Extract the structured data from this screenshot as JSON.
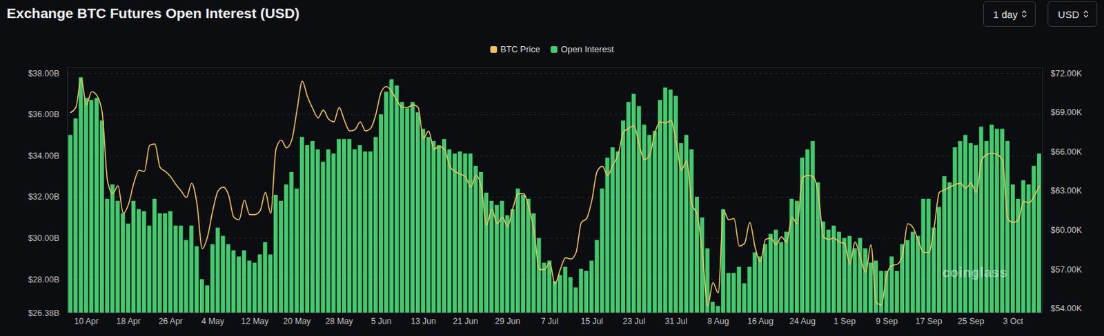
{
  "chart_data": {
    "type": "bar",
    "title": "Exchange BTC Futures Open Interest (USD)",
    "buttons": [
      "1 day",
      "USD"
    ],
    "watermark": "coinglass",
    "legend": "top",
    "grid": true,
    "categories": [
      null,
      null,
      null,
      "10 Apr",
      null,
      null,
      null,
      null,
      null,
      null,
      null,
      "18 Apr",
      null,
      null,
      null,
      null,
      null,
      null,
      null,
      "26 Apr",
      null,
      null,
      null,
      null,
      null,
      null,
      null,
      "4 May",
      null,
      null,
      null,
      null,
      null,
      null,
      null,
      "12 May",
      null,
      null,
      null,
      null,
      null,
      null,
      null,
      "20 May",
      null,
      null,
      null,
      null,
      null,
      null,
      null,
      "28 May",
      null,
      null,
      null,
      null,
      null,
      null,
      null,
      "5 Jun",
      null,
      null,
      null,
      null,
      null,
      null,
      null,
      "13 Jun",
      null,
      null,
      null,
      null,
      null,
      null,
      null,
      "21 Jun",
      null,
      null,
      null,
      null,
      null,
      null,
      null,
      "29 Jun",
      null,
      null,
      null,
      null,
      null,
      null,
      null,
      "7 Jul",
      null,
      null,
      null,
      null,
      null,
      null,
      null,
      "15 Jul",
      null,
      null,
      null,
      null,
      null,
      null,
      null,
      "23 Jul",
      null,
      null,
      null,
      null,
      null,
      null,
      null,
      "31 Jul",
      null,
      null,
      null,
      null,
      null,
      null,
      null,
      "8 Aug",
      null,
      null,
      null,
      null,
      null,
      null,
      null,
      "16 Aug",
      null,
      null,
      null,
      null,
      null,
      null,
      null,
      "24 Aug",
      null,
      null,
      null,
      null,
      null,
      null,
      null,
      "1 Sep",
      null,
      null,
      null,
      null,
      null,
      null,
      null,
      "9 Sep",
      null,
      null,
      null,
      null,
      null,
      null,
      null,
      "17 Sep",
      null,
      null,
      null,
      null,
      null,
      null,
      null,
      "25 Sep",
      null,
      null,
      null,
      null,
      null,
      null,
      null,
      "3 Oct",
      null,
      null,
      null,
      null,
      null
    ],
    "series": [
      {
        "name": "BTC Price",
        "type": "line",
        "axis": "y2",
        "color": "#f1c45a",
        "values": [
          69.0,
          69.4,
          71.6,
          69.6,
          70.6,
          70.3,
          69.0,
          63.8,
          62.8,
          63.4,
          61.3,
          62.0,
          63.6,
          64.6,
          64.5,
          66.5,
          66.6,
          64.8,
          64.5,
          64.1,
          63.5,
          63.0,
          62.5,
          63.6,
          62.0,
          58.6,
          59.5,
          61.5,
          63.0,
          63.3,
          62.7,
          61.0,
          60.8,
          62.3,
          61.2,
          61.2,
          61.5,
          62.9,
          61.3,
          66.2,
          66.9,
          66.3,
          66.9,
          69.2,
          71.4,
          70.2,
          69.3,
          68.6,
          69.2,
          68.5,
          68.3,
          69.4,
          68.4,
          67.6,
          67.7,
          68.3,
          67.6,
          67.8,
          68.9,
          70.6,
          71.0,
          70.6,
          69.9,
          69.4,
          69.4,
          69.6,
          69.4,
          67.0,
          67.6,
          66.2,
          66.4,
          66.2,
          64.9,
          64.5,
          64.3,
          64.1,
          63.3,
          64.2,
          63.3,
          60.4,
          61.6,
          60.5,
          61.0,
          60.3,
          61.7,
          62.8,
          62.8,
          61.8,
          60.0,
          57.0,
          57.0,
          57.5,
          55.9,
          57.0,
          57.9,
          57.8,
          58.3,
          60.6,
          60.9,
          62.3,
          64.5,
          64.9,
          64.2,
          65.0,
          65.8,
          67.5,
          67.8,
          68.0,
          66.5,
          65.4,
          65.8,
          67.5,
          68.3,
          68.2,
          68.4,
          66.8,
          64.6,
          65.3,
          62.0,
          61.2,
          58.2,
          54.2,
          56.0,
          55.2,
          61.5,
          60.8,
          60.9,
          58.8,
          59.0,
          60.6,
          58.7,
          57.6,
          59.3,
          59.4,
          58.9,
          59.5,
          59.1,
          61.0,
          60.5,
          64.0,
          64.2,
          64.1,
          62.8,
          59.5,
          59.3,
          59.4,
          59.1,
          59.0,
          57.4,
          59.1,
          57.9,
          56.8,
          58.9,
          54.5,
          54.3,
          56.6,
          57.3,
          57.4,
          58.1,
          60.5,
          60.2,
          59.2,
          58.3,
          58.3,
          60.2,
          62.9,
          63.1,
          63.3,
          63.5,
          63.6,
          63.2,
          63.6,
          62.9,
          65.3,
          65.8,
          65.9,
          65.8,
          65.3,
          60.9,
          60.6,
          60.8,
          62.2,
          62.1,
          62.6,
          63.4
        ]
      },
      {
        "name": "Open Interest",
        "type": "bar",
        "color": "#44c96f",
        "values": [
          35.0,
          35.8,
          37.8,
          36.8,
          36.7,
          36.8,
          35.7,
          31.9,
          32.6,
          31.8,
          31.2,
          30.7,
          31.8,
          31.4,
          31.3,
          30.6,
          31.9,
          31.2,
          31.2,
          31.3,
          30.6,
          30.6,
          29.9,
          30.6,
          29.6,
          28.0,
          27.7,
          29.7,
          30.5,
          30.1,
          29.7,
          29.4,
          29.1,
          29.4,
          28.9,
          28.8,
          29.2,
          29.8,
          29.2,
          32.1,
          31.8,
          32.6,
          33.2,
          32.4,
          34.9,
          34.5,
          34.7,
          34.3,
          33.7,
          34.3,
          34.1,
          34.8,
          34.8,
          34.8,
          34.3,
          34.5,
          34.2,
          34.2,
          34.9,
          36.0,
          37.1,
          37.7,
          37.4,
          36.6,
          36.3,
          36.6,
          36.1,
          35.3,
          34.9,
          34.7,
          34.5,
          34.8,
          34.3,
          34.1,
          34.2,
          34.1,
          34.1,
          33.5,
          33.2,
          32.2,
          31.8,
          31.6,
          31.8,
          31.1,
          31.4,
          32.4,
          32.1,
          31.9,
          31.2,
          30.0,
          28.8,
          28.9,
          27.9,
          28.2,
          28.6,
          28.1,
          27.6,
          28.5,
          28.4,
          28.9,
          29.9,
          32.4,
          33.9,
          34.4,
          34.2,
          35.7,
          36.6,
          37.0,
          36.4,
          35.5,
          35.0,
          35.2,
          36.7,
          37.3,
          37.2,
          36.9,
          34.6,
          35.0,
          34.3,
          32.0,
          31.0,
          29.5,
          26.9,
          26.7,
          31.4,
          28.3,
          28.3,
          28.6,
          27.8,
          28.6,
          29.3,
          29.1,
          29.7,
          30.2,
          30.4,
          29.8,
          30.3,
          31.9,
          31.8,
          33.9,
          34.3,
          34.7,
          32.7,
          30.8,
          30.4,
          30.6,
          30.3,
          30.0,
          30.1,
          29.5,
          30.0,
          29.5,
          28.8,
          28.9,
          28.4,
          28.4,
          29.1,
          28.4,
          29.7,
          29.9,
          30.3,
          30.1,
          31.9,
          31.9,
          30.5,
          31.5,
          33.0,
          32.7,
          34.4,
          34.7,
          35.0,
          34.6,
          34.5,
          35.4,
          34.7,
          35.5,
          35.3,
          35.3,
          34.7,
          32.6,
          31.9,
          32.8,
          32.6,
          33.5,
          34.1
        ]
      }
    ],
    "ylim": [
      26.38,
      38.3
    ],
    "yticks": [
      {
        "value": 26.38,
        "label": "$26.38B"
      },
      {
        "value": 28,
        "label": "$28.00B"
      },
      {
        "value": 30,
        "label": "$30.00B"
      },
      {
        "value": 32,
        "label": "$32.00B"
      },
      {
        "value": 34,
        "label": "$34.00B"
      },
      {
        "value": 36,
        "label": "$36.00B"
      },
      {
        "value": 38,
        "label": "$38.00B"
      }
    ],
    "y2lim": [
      53.68,
      72.47
    ],
    "y2ticks": [
      {
        "value": 54,
        "label": "$54.00K"
      },
      {
        "value": 57,
        "label": "$57.00K"
      },
      {
        "value": 60,
        "label": "$60.00K"
      },
      {
        "value": 63,
        "label": "$63.00K"
      },
      {
        "value": 66,
        "label": "$66.00K"
      },
      {
        "value": 69,
        "label": "$69.00K"
      },
      {
        "value": 72,
        "label": "$72.00K"
      }
    ]
  }
}
